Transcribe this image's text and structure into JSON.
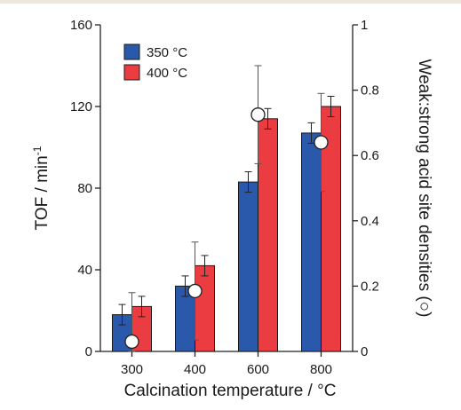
{
  "chart_data": {
    "type": "bar",
    "xlabel": "Calcination temperature / °C",
    "ylabel": "TOF / min",
    "ylabel_sup": "-1",
    "y2label": "Weak:strong acid site densities (○)",
    "categories": [
      "300",
      "400",
      "600",
      "800"
    ],
    "ylim": [
      0,
      160
    ],
    "yticks": [
      "0",
      "40",
      "80",
      "120",
      "160"
    ],
    "y2lim": [
      0,
      1
    ],
    "y2ticks": [
      "0",
      "0.2",
      "0.4",
      "0.6",
      "0.8",
      "1"
    ],
    "legend_position": "top-left",
    "series": [
      {
        "name": "350 °C",
        "color": "#2a58ab",
        "values": [
          18,
          32,
          83,
          107
        ],
        "errors": [
          5,
          5,
          5,
          5
        ]
      },
      {
        "name": "400 °C",
        "color": "#eb3c41",
        "values": [
          22,
          42,
          114,
          120
        ],
        "errors": [
          5,
          5,
          5,
          5
        ]
      }
    ],
    "ratio_points": {
      "axis": "y2",
      "values": [
        0.03,
        0.185,
        0.725,
        0.64
      ],
      "errors": [
        0.15,
        0.15,
        0.15,
        0.15
      ]
    }
  }
}
